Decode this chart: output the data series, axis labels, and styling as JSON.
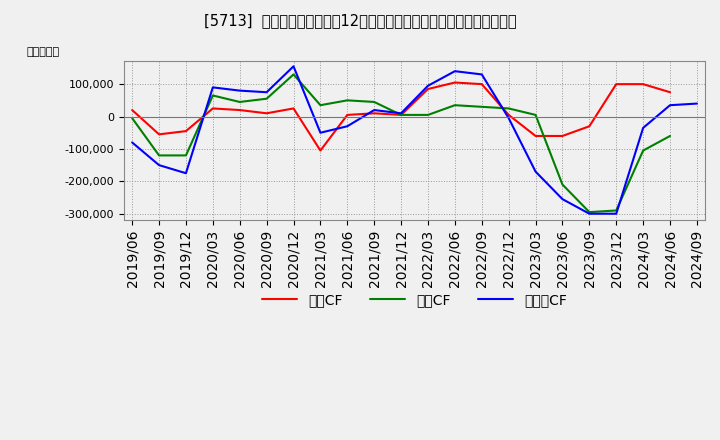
{
  "title": "[5713]  キャッシュフローの12か月移動合計の対前年同期増減額の推移",
  "ylabel": "（百万円）",
  "background_color": "#f0f0f0",
  "plot_bg_color": "#f0f0f0",
  "grid_color": "#aaaaaa",
  "ylim": [
    -320000,
    170000
  ],
  "yticks": [
    -300000,
    -200000,
    -100000,
    0,
    100000
  ],
  "legend_labels": [
    "営業CF",
    "投資CF",
    "フリーCF"
  ],
  "legend_colors": [
    "#ff0000",
    "#008000",
    "#0000ff"
  ],
  "dates": [
    "2019/06",
    "2019/09",
    "2019/12",
    "2020/03",
    "2020/06",
    "2020/09",
    "2020/12",
    "2021/03",
    "2021/06",
    "2021/09",
    "2021/12",
    "2022/03",
    "2022/06",
    "2022/09",
    "2022/12",
    "2023/03",
    "2023/06",
    "2023/09",
    "2023/12",
    "2024/03",
    "2024/06",
    "2024/09"
  ],
  "operating_cf": [
    20000,
    -55000,
    -45000,
    25000,
    20000,
    10000,
    25000,
    -105000,
    5000,
    10000,
    5000,
    85000,
    105000,
    100000,
    5000,
    -60000,
    -60000,
    -30000,
    100000,
    100000,
    75000,
    null
  ],
  "investing_cf": [
    -5000,
    -120000,
    -120000,
    65000,
    45000,
    55000,
    130000,
    35000,
    50000,
    45000,
    5000,
    5000,
    35000,
    30000,
    25000,
    5000,
    -210000,
    -295000,
    -290000,
    -105000,
    -60000,
    null
  ],
  "free_cf": [
    -80000,
    -150000,
    -175000,
    90000,
    80000,
    75000,
    155000,
    -50000,
    -30000,
    20000,
    10000,
    95000,
    140000,
    130000,
    -5000,
    -170000,
    -255000,
    -300000,
    -300000,
    -35000,
    35000,
    40000
  ]
}
